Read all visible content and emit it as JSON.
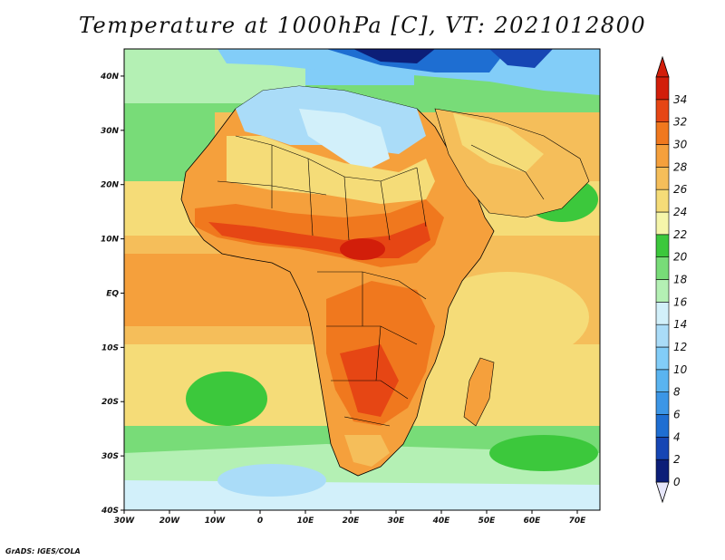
{
  "title": "Temperature at 1000hPa [C], VT: 2021012800",
  "credit": "GrADS: IGES/COLA",
  "map": {
    "lon_range": [
      -30,
      75
    ],
    "lat_range": [
      -40,
      45
    ],
    "lon_ticks": [
      {
        "value": -30,
        "label": "30W"
      },
      {
        "value": -20,
        "label": "20W"
      },
      {
        "value": -10,
        "label": "10W"
      },
      {
        "value": 0,
        "label": "0"
      },
      {
        "value": 10,
        "label": "10E"
      },
      {
        "value": 20,
        "label": "20E"
      },
      {
        "value": 30,
        "label": "30E"
      },
      {
        "value": 40,
        "label": "40E"
      },
      {
        "value": 50,
        "label": "50E"
      },
      {
        "value": 60,
        "label": "60E"
      },
      {
        "value": 70,
        "label": "70E"
      }
    ],
    "lat_ticks": [
      {
        "value": 40,
        "label": "40N"
      },
      {
        "value": 30,
        "label": "30N"
      },
      {
        "value": 20,
        "label": "20N"
      },
      {
        "value": 10,
        "label": "10N"
      },
      {
        "value": 0,
        "label": "EQ"
      },
      {
        "value": -10,
        "label": "10S"
      },
      {
        "value": -20,
        "label": "20S"
      },
      {
        "value": -30,
        "label": "30S"
      },
      {
        "value": -40,
        "label": "40S"
      }
    ]
  },
  "colorbar": {
    "levels": [
      "0",
      "2",
      "4",
      "6",
      "8",
      "10",
      "12",
      "14",
      "16",
      "18",
      "20",
      "22",
      "24",
      "26",
      "28",
      "30",
      "32",
      "34"
    ],
    "colors": [
      "#0c1e78",
      "#1646b4",
      "#1e6ed2",
      "#3c96e6",
      "#5ab4f0",
      "#82cdf8",
      "#aadcf8",
      "#d2f0fa",
      "#b4f0b4",
      "#78dc78",
      "#3cc83c",
      "#f5f5aa",
      "#f5dc78",
      "#f5be5a",
      "#f5a03c",
      "#f0781e",
      "#e64614",
      "#d21e0a"
    ],
    "under_color": "#e6e6fa",
    "over_color": "#d21e0a"
  },
  "regions": [
    {
      "name": "ocean-north-atlantic",
      "color": "#82cdf8"
    },
    {
      "name": "sahara-north",
      "color": "#d2f0fa"
    },
    {
      "name": "sahel",
      "color": "#f0781e"
    },
    {
      "name": "sahel-core",
      "color": "#e64614"
    },
    {
      "name": "tropical-atlantic",
      "color": "#f5a03c"
    },
    {
      "name": "central-africa",
      "color": "#f0781e"
    },
    {
      "name": "southern-ocean",
      "color": "#3cc83c"
    },
    {
      "name": "indian-ocean",
      "color": "#f5be5a"
    },
    {
      "name": "mediterranean",
      "color": "#1e6ed2"
    }
  ]
}
